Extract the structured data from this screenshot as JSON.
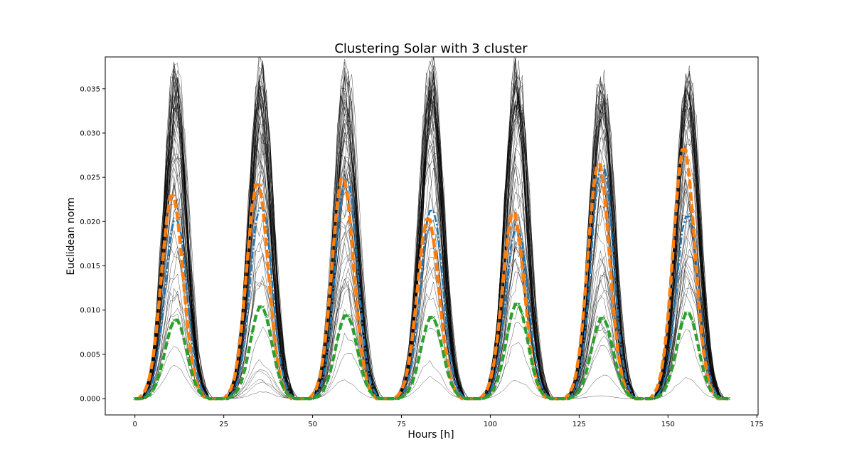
{
  "chart_data": {
    "type": "line",
    "title": "Clustering Solar with 3 cluster",
    "xlabel": "Hours [h]",
    "ylabel": "Euclidean norm",
    "xlim": [
      -8.35,
      175.35
    ],
    "ylim": [
      -0.00184,
      0.0386
    ],
    "xticks": [
      0,
      25,
      50,
      75,
      100,
      125,
      150,
      175
    ],
    "xtick_labels": [
      "0",
      "25",
      "50",
      "75",
      "100",
      "125",
      "150",
      "175"
    ],
    "yticks": [
      0.0,
      0.005,
      0.01,
      0.015,
      0.02,
      0.025,
      0.03,
      0.035
    ],
    "ytick_labels": [
      "0.000",
      "0.005",
      "0.010",
      "0.015",
      "0.020",
      "0.025",
      "0.030",
      "0.035"
    ],
    "grid": false,
    "hours": 168,
    "day_length": 24,
    "background_profiles": {
      "count": 60,
      "color": "#000000",
      "peak_range": [
        0.0,
        0.0368
      ],
      "description_peak_hour": 11.5
    },
    "series": [
      {
        "color": "#1f77b4",
        "style": "dash-dot",
        "daily_peaks": [
          0.021,
          0.0225,
          0.0258,
          0.0222,
          0.02,
          0.0275,
          0.0215
        ],
        "peak_hours": [
          11.5,
          35.5,
          59.5,
          83.5,
          107.5,
          131.5,
          155.5
        ]
      },
      {
        "color": "#ff7f0e",
        "style": "dashed",
        "daily_peaks": [
          0.0232,
          0.0245,
          0.0252,
          0.0205,
          0.0212,
          0.0268,
          0.0285
        ],
        "peak_hours": [
          10.5,
          34.5,
          58.5,
          82.5,
          106.5,
          130.5,
          154.5
        ]
      },
      {
        "color": "#2ca02c",
        "style": "dashed-x",
        "daily_peaks": [
          0.009,
          0.0105,
          0.0095,
          0.0093,
          0.0108,
          0.0092,
          0.0098
        ],
        "peak_hours": [
          11.5,
          35.5,
          59.5,
          83.5,
          107.5,
          131.5,
          155.5
        ]
      }
    ]
  }
}
